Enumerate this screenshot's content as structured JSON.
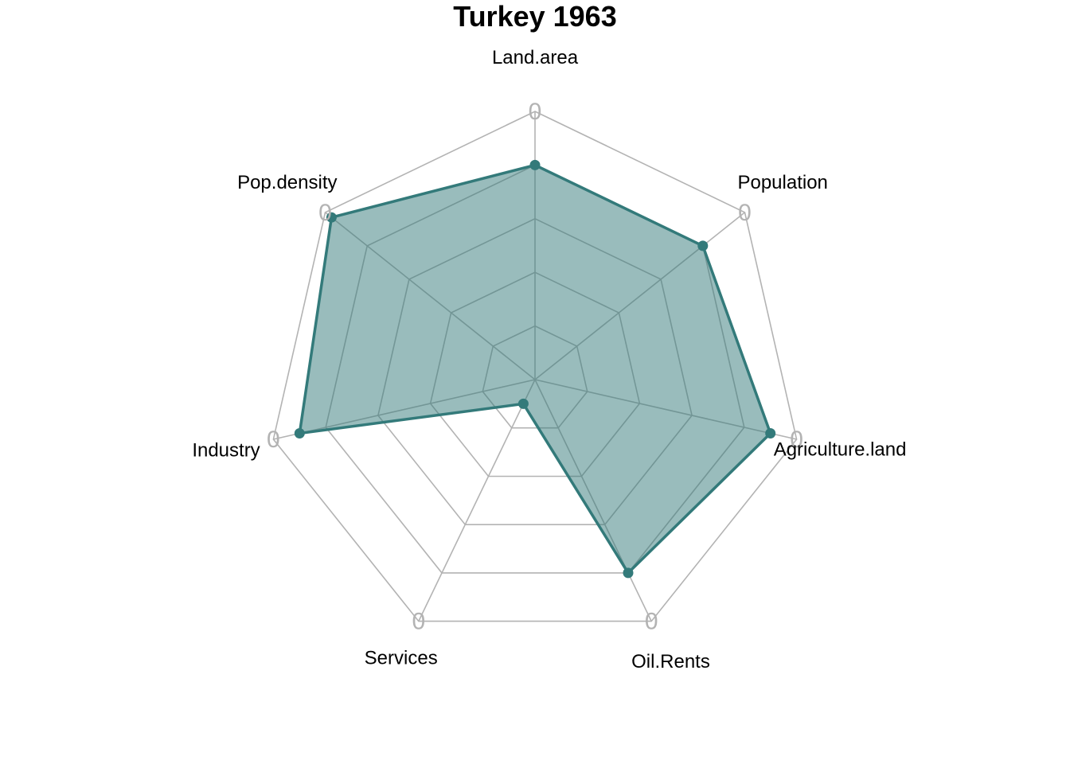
{
  "chart_data": {
    "type": "radar",
    "title": "Turkey 1963",
    "axes": [
      "Land.area",
      "Population",
      "Agriculture.land",
      "Oil.Rents",
      "Services",
      "Industry",
      "Pop.density"
    ],
    "ring_label": "0",
    "rings": 5,
    "range": [
      0,
      1
    ],
    "grid": true,
    "series": [
      {
        "values": [
          0.8,
          0.8,
          0.9,
          0.8,
          0.1,
          0.9,
          0.97
        ]
      }
    ],
    "colors": {
      "fill": "#337a7a",
      "line": "#337a7a",
      "grid": "#b3b3b3",
      "fill_opacity": 0.5
    }
  }
}
